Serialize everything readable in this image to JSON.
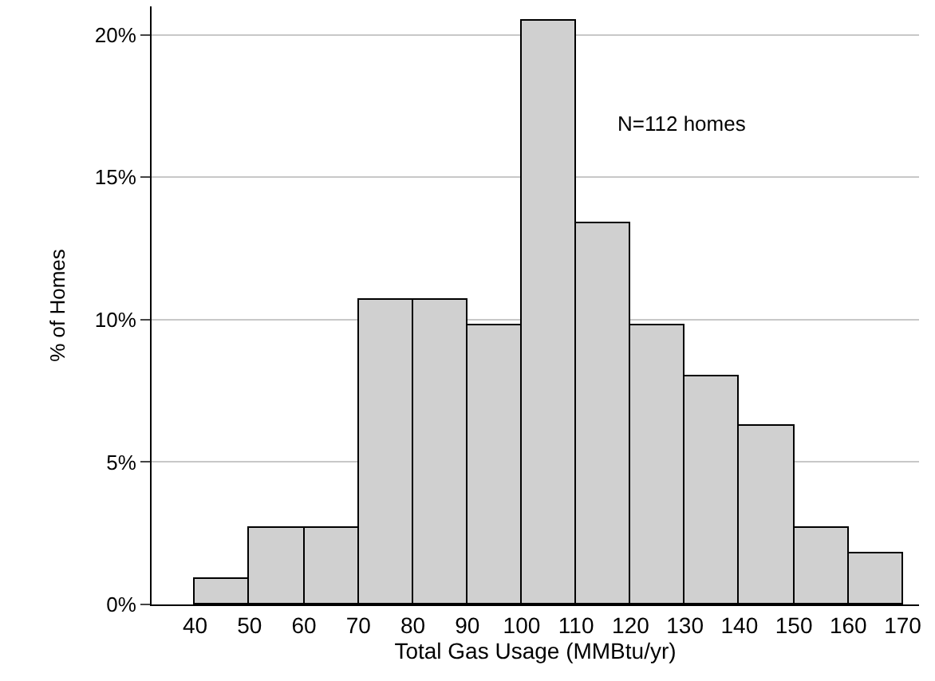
{
  "chart_data": {
    "type": "histogram",
    "xlabel": "Total Gas Usage (MMBtu/yr)",
    "ylabel": "% of Homes",
    "bins": [
      40,
      50,
      60,
      70,
      80,
      90,
      100,
      110,
      120,
      130,
      140,
      150,
      160,
      170
    ],
    "values": [
      0.9,
      2.7,
      2.7,
      10.7,
      10.7,
      9.8,
      20.5,
      13.4,
      9.8,
      8.0,
      6.3,
      2.7,
      1.8
    ],
    "color": "#d0d0d0",
    "xlim": [
      32,
      173
    ],
    "xticks": [
      40,
      50,
      60,
      70,
      80,
      90,
      100,
      110,
      120,
      130,
      140,
      150,
      160,
      170
    ],
    "ylim": [
      0,
      21
    ],
    "yticks": [
      {
        "value": 0,
        "label": "0%"
      },
      {
        "value": 5,
        "label": "5%"
      },
      {
        "value": 10,
        "label": "10%"
      },
      {
        "value": 15,
        "label": "15%"
      },
      {
        "value": 20,
        "label": "20%"
      }
    ],
    "grid": "y",
    "annotations": [
      "N=112 homes"
    ]
  }
}
